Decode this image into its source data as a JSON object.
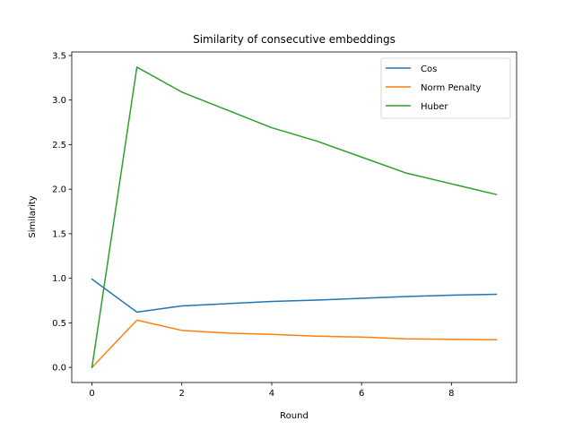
{
  "chart_data": {
    "type": "line",
    "title": "Similarity of consecutive embeddings",
    "xlabel": "Round",
    "ylabel": "Similarity",
    "x": [
      0,
      1,
      2,
      3,
      4,
      5,
      6,
      7,
      8,
      9
    ],
    "xlim": [
      -0.45,
      9.45
    ],
    "ylim": [
      -0.17,
      3.54
    ],
    "xticks": [
      0,
      2,
      4,
      6,
      8
    ],
    "xtick_labels": [
      "0",
      "2",
      "4",
      "6",
      "8"
    ],
    "yticks": [
      0.0,
      0.5,
      1.0,
      1.5,
      2.0,
      2.5,
      3.0,
      3.5
    ],
    "ytick_labels": [
      "0.0",
      "0.5",
      "1.0",
      "1.5",
      "2.0",
      "2.5",
      "3.0",
      "3.5"
    ],
    "grid": false,
    "legend_position": "top-right",
    "series": [
      {
        "name": "Cos",
        "color": "#1f77b4",
        "values": [
          0.99,
          0.62,
          0.69,
          0.715,
          0.74,
          0.755,
          0.775,
          0.795,
          0.81,
          0.82
        ]
      },
      {
        "name": "Norm Penalty",
        "color": "#ff7f0e",
        "values": [
          0.0,
          0.53,
          0.415,
          0.385,
          0.37,
          0.35,
          0.34,
          0.32,
          0.315,
          0.31
        ]
      },
      {
        "name": "Huber",
        "color": "#2ca02c",
        "values": [
          0.0,
          3.37,
          3.09,
          2.89,
          2.69,
          2.54,
          2.36,
          2.18,
          2.06,
          1.94
        ]
      }
    ]
  }
}
